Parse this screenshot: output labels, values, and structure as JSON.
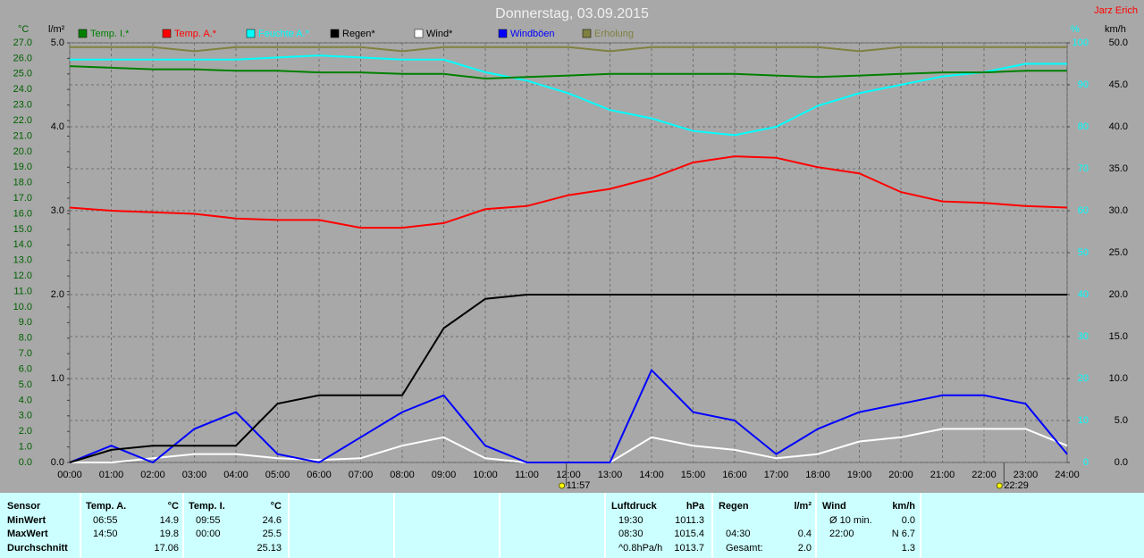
{
  "chart_data": {
    "type": "line",
    "title": "Donnerstag, 03.09.2015",
    "author": "Jarz Erich",
    "y_label": "°C",
    "y2_label": "l/m²",
    "y3_label": "%",
    "y4_label": "km/h",
    "xlim": [
      0,
      24
    ],
    "xticks": [
      {
        "value": 0,
        "label": "00:00"
      },
      {
        "value": 1,
        "label": "01:00"
      },
      {
        "value": 2,
        "label": "02:00"
      },
      {
        "value": 3,
        "label": "03:00"
      },
      {
        "value": 4,
        "label": "04:00"
      },
      {
        "value": 5,
        "label": "05:00"
      },
      {
        "value": 6,
        "label": "06:00"
      },
      {
        "value": 7,
        "label": "07:00"
      },
      {
        "value": 8,
        "label": "08:00"
      },
      {
        "value": 9,
        "label": "09:00"
      },
      {
        "value": 10,
        "label": "10:00"
      },
      {
        "value": 11,
        "label": "11:00"
      },
      {
        "value": 12,
        "label": "12:00"
      },
      {
        "value": 13,
        "label": "13:00"
      },
      {
        "value": 14,
        "label": "14:00"
      },
      {
        "value": 15,
        "label": "15:00"
      },
      {
        "value": 16,
        "label": "16:00"
      },
      {
        "value": 17,
        "label": "17:00"
      },
      {
        "value": 18,
        "label": "18:00"
      },
      {
        "value": 19,
        "label": "19:00"
      },
      {
        "value": 20,
        "label": "20:00"
      },
      {
        "value": 21,
        "label": "21:00"
      },
      {
        "value": 22,
        "label": "22:00"
      },
      {
        "value": 23,
        "label": "23:00"
      },
      {
        "value": 24,
        "label": "24:00"
      }
    ],
    "ylim": [
      0,
      27
    ],
    "yticks": [
      {
        "value": 0,
        "label": "0.0"
      },
      {
        "value": 1,
        "label": "1.0"
      },
      {
        "value": 2,
        "label": "2.0"
      },
      {
        "value": 3,
        "label": "3.0"
      },
      {
        "value": 4,
        "label": "4.0"
      },
      {
        "value": 5,
        "label": "5.0"
      },
      {
        "value": 6,
        "label": "6.0"
      },
      {
        "value": 7,
        "label": "7.0"
      },
      {
        "value": 8,
        "label": "8.0"
      },
      {
        "value": 9,
        "label": "9.0"
      },
      {
        "value": 10,
        "label": "10.0"
      },
      {
        "value": 11,
        "label": "11.0"
      },
      {
        "value": 12,
        "label": "12.0"
      },
      {
        "value": 13,
        "label": "13.0"
      },
      {
        "value": 14,
        "label": "14.0"
      },
      {
        "value": 15,
        "label": "15.0"
      },
      {
        "value": 16,
        "label": "16.0"
      },
      {
        "value": 17,
        "label": "17.0"
      },
      {
        "value": 18,
        "label": "18.0"
      },
      {
        "value": 19,
        "label": "19.0"
      },
      {
        "value": 20,
        "label": "20.0"
      },
      {
        "value": 21,
        "label": "21.0"
      },
      {
        "value": 22,
        "label": "22.0"
      },
      {
        "value": 23,
        "label": "23.0"
      },
      {
        "value": 24,
        "label": "24.0"
      },
      {
        "value": 25,
        "label": "25.0"
      },
      {
        "value": 26,
        "label": "26.0"
      },
      {
        "value": 27,
        "label": "27.0"
      }
    ],
    "y2lim": [
      0,
      5
    ],
    "y2ticks": [
      {
        "value": 0,
        "label": "0.0"
      },
      {
        "value": 1,
        "label": "1.0"
      },
      {
        "value": 2,
        "label": "2.0"
      },
      {
        "value": 3,
        "label": "3.0"
      },
      {
        "value": 4,
        "label": "4.0"
      },
      {
        "value": 5,
        "label": "5.0"
      }
    ],
    "y3lim": [
      0,
      100
    ],
    "y3ticks": [
      0,
      10,
      20,
      30,
      40,
      50,
      60,
      70,
      80,
      90,
      100
    ],
    "y4lim": [
      0,
      50
    ],
    "y4ticks": [
      {
        "value": 0,
        "label": "0.0"
      },
      {
        "value": 5,
        "label": "5.0"
      },
      {
        "value": 10,
        "label": "10.0"
      },
      {
        "value": 15,
        "label": "15.0"
      },
      {
        "value": 20,
        "label": "20.0"
      },
      {
        "value": 25,
        "label": "25.0"
      },
      {
        "value": 30,
        "label": "30.0"
      },
      {
        "value": 35,
        "label": "35.0"
      },
      {
        "value": 40,
        "label": "40.0"
      },
      {
        "value": 45,
        "label": "45.0"
      },
      {
        "value": 50,
        "label": "50.0"
      }
    ],
    "grid": true,
    "x": [
      0,
      1,
      2,
      3,
      4,
      5,
      6,
      7,
      8,
      9,
      10,
      11,
      12,
      13,
      14,
      15,
      16,
      17,
      18,
      19,
      20,
      21,
      22,
      23,
      24
    ],
    "series": [
      {
        "name": "Temp. I.*",
        "color": "#008000",
        "axis": "y",
        "values": [
          25.5,
          25.4,
          25.3,
          25.3,
          25.2,
          25.2,
          25.1,
          25.1,
          25.0,
          25.0,
          24.7,
          24.8,
          24.9,
          25.0,
          25.0,
          25.0,
          25.0,
          24.9,
          24.8,
          24.9,
          25.0,
          25.1,
          25.1,
          25.2,
          25.2
        ]
      },
      {
        "name": "Temp. A.*",
        "color": "#ff0000",
        "axis": "y",
        "values": [
          16.4,
          16.2,
          16.1,
          16.0,
          15.7,
          15.6,
          15.6,
          15.1,
          15.1,
          15.4,
          16.3,
          16.5,
          17.2,
          17.6,
          18.3,
          19.3,
          19.7,
          19.6,
          19.0,
          18.6,
          17.4,
          16.8,
          16.7,
          16.5,
          16.4
        ]
      },
      {
        "name": "Feuchte A.*",
        "color": "#00ffff",
        "axis": "y3",
        "values": [
          96,
          96,
          96,
          96,
          96,
          96.5,
          97,
          96.5,
          96,
          96,
          93,
          91,
          88,
          84,
          82,
          79,
          78,
          80,
          85,
          88,
          90,
          92,
          93,
          95,
          95
        ]
      },
      {
        "name": "Regen*",
        "color": "#000000",
        "axis": "y2",
        "values": [
          0,
          0.15,
          0.2,
          0.2,
          0.2,
          0.7,
          0.8,
          0.8,
          0.8,
          1.6,
          1.95,
          2,
          2,
          2,
          2,
          2,
          2,
          2,
          2,
          2,
          2,
          2,
          2,
          2,
          2
        ]
      },
      {
        "name": "Wind*",
        "color": "#ffffff",
        "axis": "y4",
        "values": [
          0,
          0,
          0.5,
          1,
          1,
          0.5,
          0.3,
          0.5,
          2,
          3,
          0.5,
          0,
          0,
          0,
          3,
          2,
          1.5,
          0.5,
          1,
          2.5,
          3,
          4,
          4,
          4,
          2
        ]
      },
      {
        "name": "Windböen",
        "color": "#0000ff",
        "axis": "y4",
        "values": [
          0,
          2,
          0,
          4,
          6,
          1,
          0,
          3,
          6,
          8,
          2,
          0,
          0,
          0,
          11,
          6,
          5,
          1,
          4,
          6,
          7,
          8,
          8,
          7,
          1
        ]
      },
      {
        "name": "Erholung",
        "color": "#808040",
        "axis": "y3",
        "values": [
          99,
          99,
          99,
          98,
          99,
          99,
          99,
          99,
          98,
          99,
          99,
          99,
          99,
          98,
          99,
          99,
          99,
          99,
          99,
          98,
          99,
          99,
          99,
          99,
          99
        ]
      }
    ],
    "annotations": [
      {
        "x": 11.95,
        "label": "11:57"
      },
      {
        "x": 22.48,
        "label": "22:29"
      }
    ]
  },
  "table": {
    "row_labels": [
      "Sensor",
      "MinWert",
      "MaxWert",
      "Durchschnitt"
    ],
    "groups": [
      {
        "header": "Temp. A.",
        "unit": "°C",
        "rows": [
          [
            "06:55",
            "14.9"
          ],
          [
            "14:50",
            "19.8"
          ],
          [
            null,
            "17.06"
          ]
        ]
      },
      {
        "header": "Temp. I.",
        "unit": "°C",
        "rows": [
          [
            "09:55",
            "24.6"
          ],
          [
            "00:00",
            "25.5"
          ],
          [
            null,
            "25.13"
          ]
        ]
      },
      {
        "header": "Luftdruck",
        "unit": "hPa",
        "rows": [
          [
            "19:30",
            "1011.3"
          ],
          [
            "08:30",
            "1015.4"
          ],
          [
            "^0.8hPa/h",
            "1013.7"
          ]
        ]
      },
      {
        "header": "Regen",
        "unit": "l/m²",
        "rows": [
          [
            null,
            null
          ],
          [
            "04:30",
            "0.4"
          ],
          [
            "Gesamt:",
            "2.0"
          ]
        ]
      },
      {
        "header": "Wind",
        "unit": "km/h",
        "rows": [
          [
            "Ø 10 min.",
            "0.0"
          ],
          [
            "22:00",
            "N 6.7"
          ],
          [
            null,
            "1.3"
          ]
        ]
      }
    ]
  }
}
